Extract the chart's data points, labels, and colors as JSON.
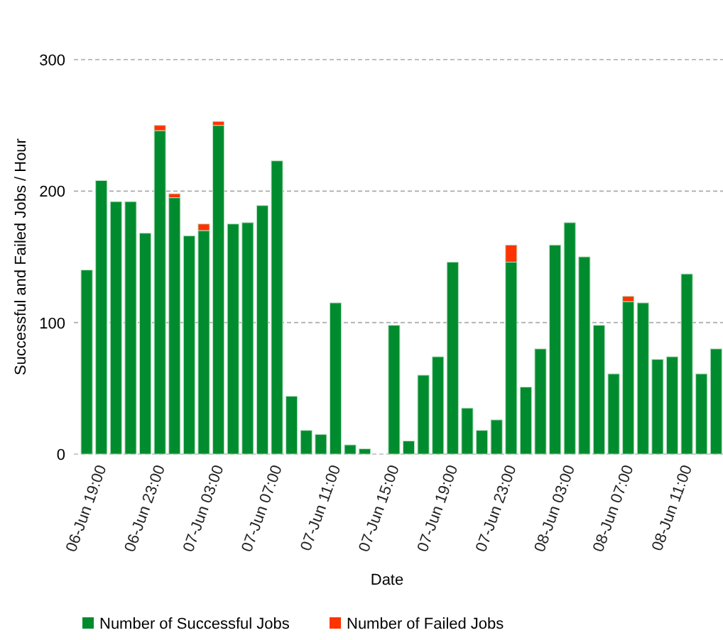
{
  "chart_data": {
    "type": "bar",
    "stacked": true,
    "xlabel": "Date",
    "ylabel": "Successful and Failed Jobs / Hour",
    "categories": [
      null,
      "06-Jun 19:00",
      null,
      null,
      null,
      "06-Jun 23:00",
      null,
      null,
      null,
      "07-Jun 03:00",
      null,
      null,
      null,
      "07-Jun 07:00",
      null,
      null,
      null,
      "07-Jun 11:00",
      null,
      null,
      null,
      "07-Jun 15:00",
      null,
      null,
      null,
      "07-Jun 19:00",
      null,
      null,
      null,
      "07-Jun 23:00",
      null,
      null,
      null,
      "08-Jun 03:00",
      null,
      null,
      null,
      "08-Jun 07:00",
      null,
      null,
      null,
      "08-Jun 11:00",
      null,
      null
    ],
    "series": [
      {
        "name": "Number of Successful Jobs",
        "color": "#008c2e",
        "values": [
          140,
          208,
          192,
          192,
          168,
          246,
          195,
          166,
          170,
          250,
          175,
          176,
          189,
          223,
          44,
          18,
          15,
          115,
          7,
          4,
          0,
          98,
          10,
          60,
          74,
          146,
          35,
          18,
          26,
          146,
          51,
          80,
          159,
          176,
          150,
          98,
          61,
          116,
          115,
          72,
          74,
          137,
          61,
          80
        ]
      },
      {
        "name": "Number of Failed Jobs",
        "color": "#ff3300",
        "values": [
          null,
          null,
          null,
          null,
          null,
          4,
          3,
          null,
          5,
          3,
          null,
          null,
          null,
          null,
          null,
          null,
          null,
          null,
          null,
          null,
          null,
          null,
          null,
          null,
          null,
          null,
          null,
          null,
          null,
          13,
          null,
          null,
          null,
          null,
          null,
          null,
          null,
          4,
          null,
          null,
          null,
          null,
          null,
          null
        ]
      }
    ],
    "ylim": [
      0,
      300
    ],
    "yticks": [
      0,
      100,
      200,
      300
    ],
    "grid": "y",
    "legend": "bottom"
  }
}
